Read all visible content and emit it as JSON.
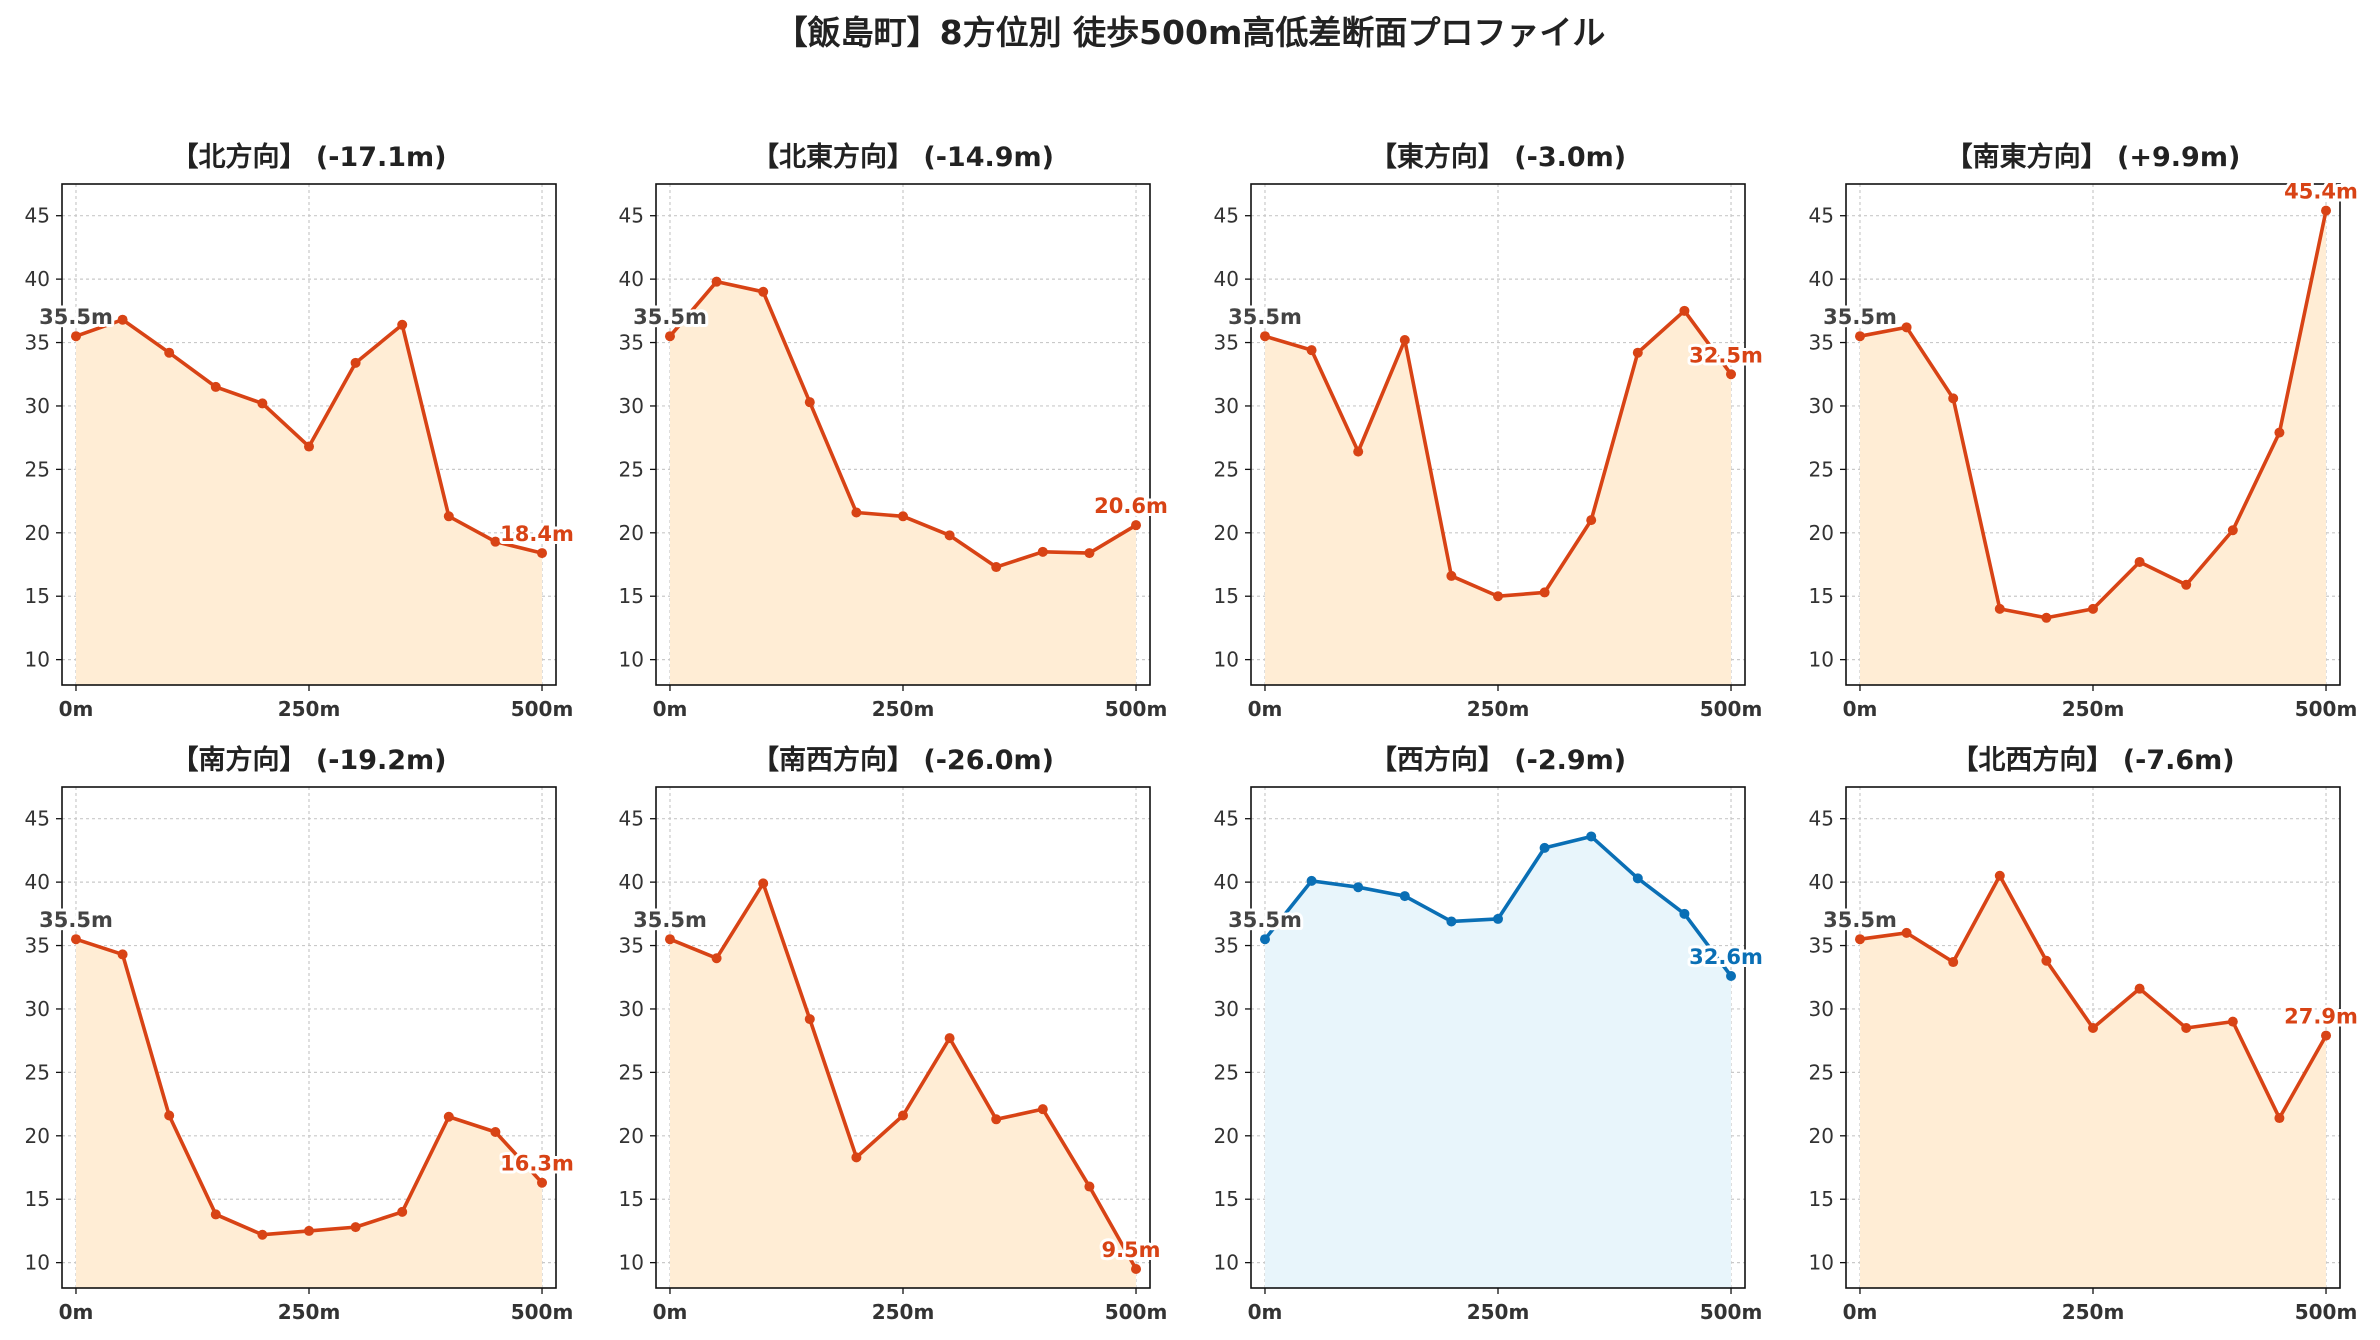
{
  "figure": {
    "suptitle": "【飯島町】8方位別 徒歩500m高低差断面プロファイル"
  },
  "colors": {
    "descent_line": "#d84315",
    "descent_fill": "#ffedd5",
    "ascent_line": "#0a6fb5",
    "ascent_fill": "#e8f5fb",
    "start_label": "#444444"
  },
  "chart_data": [
    {
      "type": "area",
      "title": "【北方向】 (-17.1m)",
      "x": [
        0,
        50,
        100,
        150,
        200,
        250,
        300,
        350,
        400,
        450,
        500
      ],
      "y": [
        35.5,
        36.8,
        34.2,
        31.5,
        30.2,
        26.8,
        33.4,
        36.4,
        21.3,
        19.3,
        18.4
      ],
      "color": "descent",
      "xticks": [
        "0m",
        "250m",
        "500m"
      ],
      "yticks": [
        "10",
        "15",
        "20",
        "25",
        "30",
        "35",
        "40",
        "45"
      ],
      "xlim": [
        -15,
        515
      ],
      "ylim": [
        8,
        47.5
      ],
      "start_label": "35.5m",
      "end_label": "18.4m",
      "grid": true
    },
    {
      "type": "area",
      "title": "【北東方向】 (-14.9m)",
      "x": [
        0,
        50,
        100,
        150,
        200,
        250,
        300,
        350,
        400,
        450,
        500
      ],
      "y": [
        35.5,
        39.8,
        39.0,
        30.3,
        21.6,
        21.3,
        19.8,
        17.3,
        18.5,
        18.4,
        20.6
      ],
      "color": "descent",
      "xticks": [
        "0m",
        "250m",
        "500m"
      ],
      "yticks": [
        "10",
        "15",
        "20",
        "25",
        "30",
        "35",
        "40",
        "45"
      ],
      "xlim": [
        -15,
        515
      ],
      "ylim": [
        8,
        47.5
      ],
      "start_label": "35.5m",
      "end_label": "20.6m",
      "grid": true
    },
    {
      "type": "area",
      "title": "【東方向】 (-3.0m)",
      "x": [
        0,
        50,
        100,
        150,
        200,
        250,
        300,
        350,
        400,
        450,
        500
      ],
      "y": [
        35.5,
        34.4,
        26.4,
        35.2,
        16.6,
        15.0,
        15.3,
        21.0,
        34.2,
        37.5,
        32.5
      ],
      "color": "descent",
      "xticks": [
        "0m",
        "250m",
        "500m"
      ],
      "yticks": [
        "10",
        "15",
        "20",
        "25",
        "30",
        "35",
        "40",
        "45"
      ],
      "xlim": [
        -15,
        515
      ],
      "ylim": [
        8,
        47.5
      ],
      "start_label": "35.5m",
      "end_label": "32.5m",
      "grid": true
    },
    {
      "type": "area",
      "title": "【南東方向】 (+9.9m)",
      "x": [
        0,
        50,
        100,
        150,
        200,
        250,
        300,
        350,
        400,
        450,
        500
      ],
      "y": [
        35.5,
        36.2,
        30.6,
        14.0,
        13.3,
        14.0,
        17.7,
        15.9,
        20.2,
        27.9,
        45.4
      ],
      "color": "descent",
      "xticks": [
        "0m",
        "250m",
        "500m"
      ],
      "yticks": [
        "10",
        "15",
        "20",
        "25",
        "30",
        "35",
        "40",
        "45"
      ],
      "xlim": [
        -15,
        515
      ],
      "ylim": [
        8,
        47.5
      ],
      "start_label": "35.5m",
      "end_label": "45.4m",
      "grid": true
    },
    {
      "type": "area",
      "title": "【南方向】 (-19.2m)",
      "x": [
        0,
        50,
        100,
        150,
        200,
        250,
        300,
        350,
        400,
        450,
        500
      ],
      "y": [
        35.5,
        34.3,
        21.6,
        13.8,
        12.2,
        12.5,
        12.8,
        14.0,
        21.5,
        20.3,
        16.3
      ],
      "color": "descent",
      "xticks": [
        "0m",
        "250m",
        "500m"
      ],
      "yticks": [
        "10",
        "15",
        "20",
        "25",
        "30",
        "35",
        "40",
        "45"
      ],
      "xlim": [
        -15,
        515
      ],
      "ylim": [
        8,
        47.5
      ],
      "start_label": "35.5m",
      "end_label": "16.3m",
      "grid": true
    },
    {
      "type": "area",
      "title": "【南西方向】 (-26.0m)",
      "x": [
        0,
        50,
        100,
        150,
        200,
        250,
        300,
        350,
        400,
        450,
        500
      ],
      "y": [
        35.5,
        34.0,
        39.9,
        29.2,
        18.3,
        21.6,
        27.7,
        21.3,
        22.1,
        16.0,
        9.5
      ],
      "color": "descent",
      "xticks": [
        "0m",
        "250m",
        "500m"
      ],
      "yticks": [
        "10",
        "15",
        "20",
        "25",
        "30",
        "35",
        "40",
        "45"
      ],
      "xlim": [
        -15,
        515
      ],
      "ylim": [
        8,
        47.5
      ],
      "start_label": "35.5m",
      "end_label": "9.5m",
      "grid": true
    },
    {
      "type": "area",
      "title": "【西方向】 (-2.9m)",
      "x": [
        0,
        50,
        100,
        150,
        200,
        250,
        300,
        350,
        400,
        450,
        500
      ],
      "y": [
        35.5,
        40.1,
        39.6,
        38.9,
        36.9,
        37.1,
        42.7,
        43.6,
        40.3,
        37.5,
        32.6
      ],
      "color": "ascent",
      "xticks": [
        "0m",
        "250m",
        "500m"
      ],
      "yticks": [
        "10",
        "15",
        "20",
        "25",
        "30",
        "35",
        "40",
        "45"
      ],
      "xlim": [
        -15,
        515
      ],
      "ylim": [
        8,
        47.5
      ],
      "start_label": "35.5m",
      "end_label": "32.6m",
      "grid": true
    },
    {
      "type": "area",
      "title": "【北西方向】 (-7.6m)",
      "x": [
        0,
        50,
        100,
        150,
        200,
        250,
        300,
        350,
        400,
        450,
        500
      ],
      "y": [
        35.5,
        36.0,
        33.7,
        40.5,
        33.8,
        28.5,
        31.6,
        28.5,
        29.0,
        21.4,
        27.9
      ],
      "color": "descent",
      "xticks": [
        "0m",
        "250m",
        "500m"
      ],
      "yticks": [
        "10",
        "15",
        "20",
        "25",
        "30",
        "35",
        "40",
        "45"
      ],
      "xlim": [
        -15,
        515
      ],
      "ylim": [
        8,
        47.5
      ],
      "start_label": "35.5m",
      "end_label": "27.9m",
      "grid": true
    }
  ]
}
